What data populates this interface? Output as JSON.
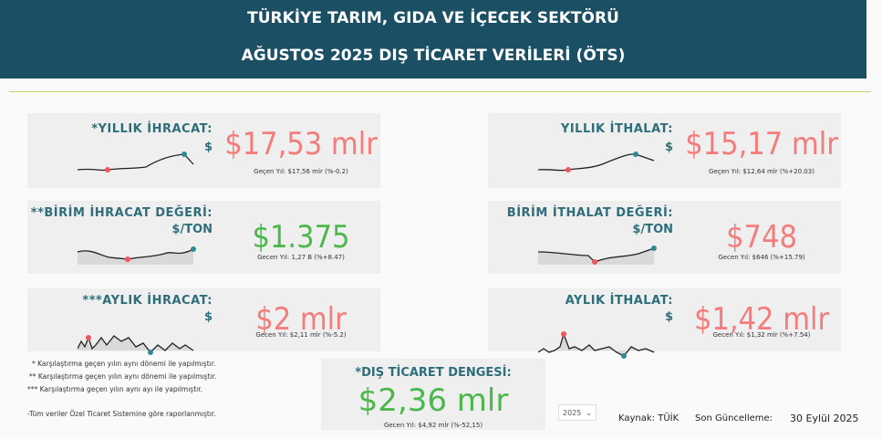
{
  "header": {
    "title_lines": [
      "TÜRKİYE TARIM, GIDA VE İÇECEK SEKTÖRÜ",
      "AĞUSTOS 2025 DIŞ TİCARET VERİLERİ (ÖTS)"
    ]
  },
  "cards": [
    {
      "label": "*YILLIK İHRACAT:",
      "unit": "$",
      "value": "$17,53 mlr",
      "previous": "Geçen Yıl: $17,56 mlr (%-0.2)"
    },
    {
      "label": "YILLIK İTHALAT:",
      "unit": "$",
      "value": "$15,17 mlr",
      "previous": "Geçen Yıl: $12,64 mlr (%+20.03)"
    },
    {
      "label": "**BİRİM İHRACAT DEĞERİ:",
      "unit": "$/TON",
      "value": "$1.375",
      "previous": "Gecen Yıl: 1,27 B (%+8.47)"
    },
    {
      "label": "BİRİM İTHALAT DEĞERİ:",
      "unit": "$/TON",
      "value": "$748",
      "previous": "Gecen Yıl: $646 (%+15.79)"
    },
    {
      "label": "***AYLIK İHRACAT:",
      "unit": "$",
      "value": "$2 mlr",
      "previous": "Gecen Yıl: $2,11 mlr (%-5.2)"
    },
    {
      "label": "AYLIK İTHALAT:",
      "unit": "$",
      "value": "$1,42 mlr",
      "previous": "Gecen Yıl: $1,32 mlr (%+7.54)"
    }
  ],
  "footnotes": [
    "* Karşılaştırma geçen yılın aynı dönemi ile yapılmıştır.",
    "** Karşılaştırma geçen yılın aynı dönemi ile yapılmıştır.",
    "*** Karşılaştırma geçen yılın aynı ayı ile yapılmıştır.",
    "-Tüm veriler Özel Ticaret Sistemine göre raporlanmıştır."
  ],
  "balance": {
    "label": "*DIŞ TİCARET DENGESİ:",
    "value": "$2,36 mlr",
    "previous": "Gecen Yıl: $4,92 mlr (%-52,15)"
  },
  "filter": {
    "year": "2025"
  },
  "source": "Kaynak: TÜİK",
  "updated_label": "Son Güncelleme:",
  "updated_date": "30 Eylül 2025"
}
